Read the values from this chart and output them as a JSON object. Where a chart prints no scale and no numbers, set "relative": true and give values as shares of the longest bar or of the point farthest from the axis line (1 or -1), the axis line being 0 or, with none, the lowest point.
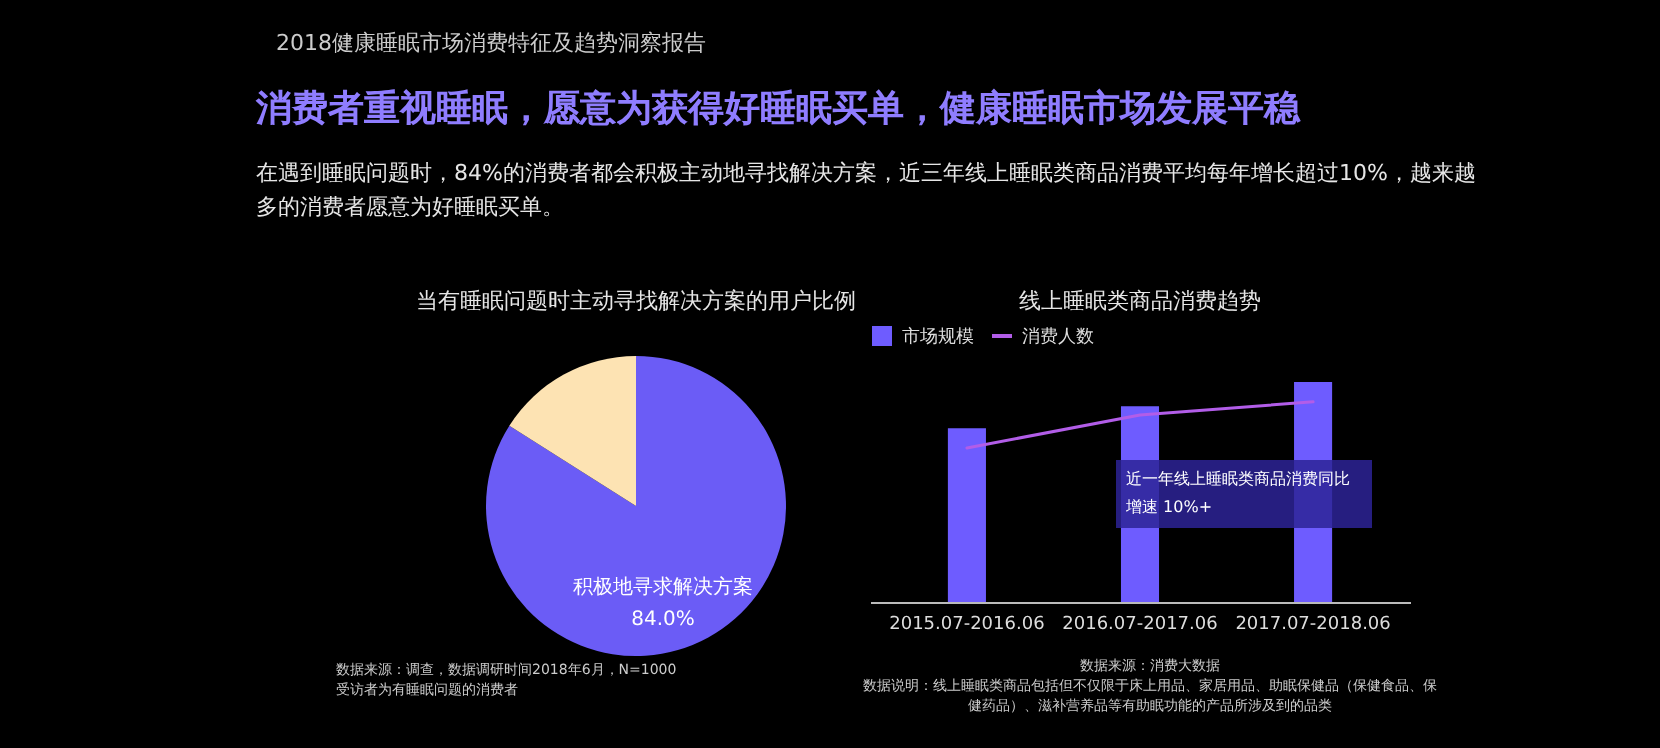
{
  "chart_data": [
    {
      "type": "other",
      "title": "消费者重视睡眠，愿意为获得好睡眠买单，健康睡眠市场发展平稳",
      "subtitle": "在遇到睡眠问题时，84%的消费者都会积极主动地寻找解决方案，近三年线上睡眠类商品消费平均每年增长超过10%，越来越多的消费者愿意为好睡眠买单。",
      "annotations": [
        "2018健康睡眠市场消费特征及趋势洞察报告"
      ]
    },
    {
      "type": "pie",
      "title": "当有睡眠问题时主动寻找解决方案的用户比例",
      "categories": [
        "积极地寻求解决方案",
        null
      ],
      "values": [
        84.0,
        16.0
      ],
      "colors": [
        "#6b5cf6",
        "#fde3b3"
      ],
      "value_labels": [
        "84.0%",
        null
      ],
      "annotations": [
        "数据来源：调查，数据调研时间2018年6月，N=1000",
        "受访者为有睡眠问题的消费者"
      ]
    },
    {
      "type": "bar",
      "title": "线上睡眠类商品消费趋势",
      "relative": true,
      "categories": [
        "2015.07-2016.06",
        "2016.07-2017.06",
        "2017.07-2018.06"
      ],
      "legend": "top",
      "marker": "none",
      "series": [
        {
          "name": "市场规模",
          "type": "bar",
          "color": "#6e5cff",
          "values": [
            0.79,
            0.89,
            1
          ]
        },
        {
          "name": "消费人数",
          "type": "line",
          "color": "#b25de8",
          "values": [
            0.7,
            0.85,
            0.91
          ]
        }
      ],
      "annotations": [
        "近一年线上睡眠类商品消费同比增速 10%+",
        "数据来源：消费大数据",
        "数据说明：线上睡眠类商品包括但不仅限于床上用品、家居用品、助眠保健品（保健食品、保健药品）、滋补营养品等有助眠功能的产品所涉及到的品类"
      ]
    }
  ]
}
